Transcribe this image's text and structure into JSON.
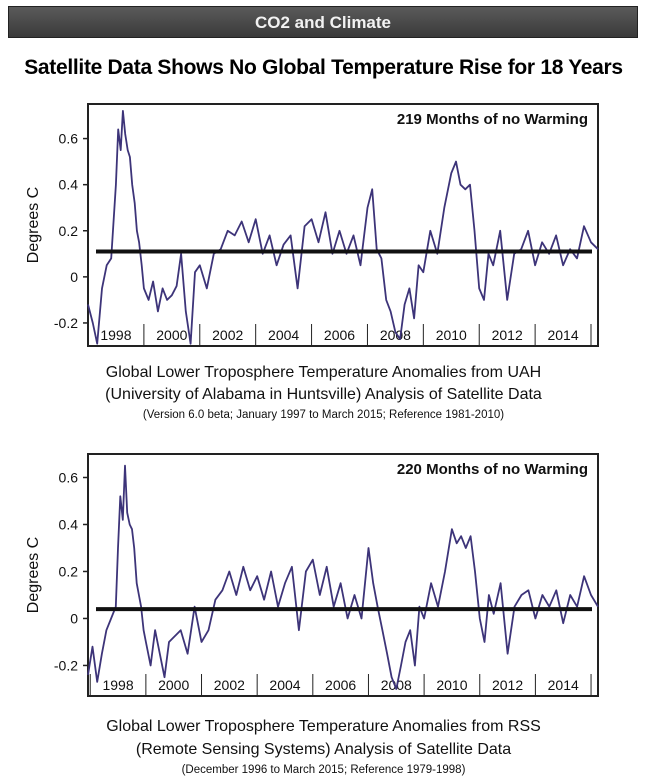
{
  "banner": {
    "title": "CO2 and Climate"
  },
  "headline": "Satellite Data Shows No Global Temperature Rise for 18 Years",
  "colors": {
    "series": "#3d3479",
    "trend": "#111111",
    "banner": "#4a4a4a"
  },
  "chart_data": [
    {
      "type": "line",
      "annotation": "219 Months of no Warming",
      "ylabel": "Degrees C",
      "xlim": [
        1997.0,
        2015.25
      ],
      "ylim": [
        -0.3,
        0.75
      ],
      "yticks": [
        "0.6",
        "0.4",
        "0.2",
        "0",
        "-0.2"
      ],
      "ytick_values": [
        0.6,
        0.4,
        0.2,
        0.0,
        -0.2
      ],
      "xticks": [
        "1998",
        "2000",
        "2002",
        "2004",
        "2006",
        "2008",
        "2010",
        "2012",
        "2014"
      ],
      "trend": {
        "x": [
          1997.0,
          2015.25
        ],
        "y": [
          0.11,
          0.11
        ]
      },
      "caption": [
        "Global Lower Troposphere Temperature Anomalies from UAH",
        "(University of Alabama in Huntsville) Analysis of Satellite Data"
      ],
      "subcaption": "(Version 6.0 beta; January 1997 to March 2015; Reference 1981-2010)",
      "series": [
        {
          "x": [
            1997.0,
            1997.17,
            1997.33,
            1997.5,
            1997.67,
            1997.83,
            1998.0,
            1998.08,
            1998.17,
            1998.25,
            1998.33,
            1998.42,
            1998.5,
            1998.58,
            1998.67,
            1998.75,
            1998.83,
            1998.92,
            1999.0,
            1999.17,
            1999.33,
            1999.5,
            1999.67,
            1999.83,
            2000.0,
            2000.17,
            2000.33,
            2000.5,
            2000.67,
            2000.83,
            2001.0,
            2001.25,
            2001.5,
            2001.75,
            2002.0,
            2002.25,
            2002.5,
            2002.75,
            2003.0,
            2003.25,
            2003.5,
            2003.75,
            2004.0,
            2004.25,
            2004.5,
            2004.75,
            2005.0,
            2005.25,
            2005.5,
            2005.75,
            2006.0,
            2006.25,
            2006.5,
            2006.75,
            2007.0,
            2007.17,
            2007.33,
            2007.5,
            2007.67,
            2007.83,
            2008.0,
            2008.17,
            2008.33,
            2008.5,
            2008.67,
            2008.83,
            2009.0,
            2009.25,
            2009.5,
            2009.75,
            2010.0,
            2010.17,
            2010.33,
            2010.5,
            2010.67,
            2010.83,
            2011.0,
            2011.17,
            2011.33,
            2011.5,
            2011.75,
            2012.0,
            2012.25,
            2012.5,
            2012.75,
            2013.0,
            2013.25,
            2013.5,
            2013.75,
            2014.0,
            2014.25,
            2014.5,
            2014.75,
            2015.0,
            2015.25
          ],
          "y": [
            -0.12,
            -0.2,
            -0.29,
            -0.05,
            0.05,
            0.08,
            0.4,
            0.64,
            0.55,
            0.72,
            0.62,
            0.55,
            0.52,
            0.4,
            0.32,
            0.2,
            0.15,
            0.05,
            -0.05,
            -0.1,
            -0.02,
            -0.15,
            -0.05,
            -0.1,
            -0.08,
            -0.04,
            0.1,
            -0.15,
            -0.29,
            0.02,
            0.05,
            -0.05,
            0.1,
            0.12,
            0.2,
            0.18,
            0.24,
            0.15,
            0.25,
            0.1,
            0.18,
            0.05,
            0.14,
            0.18,
            -0.05,
            0.22,
            0.25,
            0.15,
            0.28,
            0.1,
            0.2,
            0.1,
            0.18,
            0.05,
            0.3,
            0.38,
            0.12,
            0.08,
            -0.1,
            -0.15,
            -0.24,
            -0.27,
            -0.12,
            -0.05,
            -0.18,
            0.05,
            0.02,
            0.2,
            0.1,
            0.3,
            0.45,
            0.5,
            0.4,
            0.38,
            0.4,
            0.2,
            -0.05,
            -0.1,
            0.1,
            0.05,
            0.2,
            -0.1,
            0.1,
            0.12,
            0.2,
            0.05,
            0.15,
            0.1,
            0.18,
            0.05,
            0.12,
            0.08,
            0.22,
            0.15,
            0.12
          ]
        }
      ]
    },
    {
      "type": "line",
      "annotation": "220 Months of no Warming",
      "ylabel": "Degrees C",
      "xlim": [
        1996.92,
        2015.25
      ],
      "ylim": [
        -0.33,
        0.7
      ],
      "yticks": [
        "0.6",
        "0.4",
        "0.2",
        "0",
        "-0.2"
      ],
      "ytick_values": [
        0.6,
        0.4,
        0.2,
        0.0,
        -0.2
      ],
      "xticks": [
        "1998",
        "2000",
        "2002",
        "2004",
        "2006",
        "2008",
        "2010",
        "2012",
        "2014"
      ],
      "trend": {
        "x": [
          1996.92,
          2015.25
        ],
        "y": [
          0.04,
          0.04
        ]
      },
      "caption": [
        "Global Lower Troposphere Temperature Anomalies from RSS",
        "(Remote Sensing Systems) Analysis of Satellite Data"
      ],
      "subcaption": "(December 1996 to March 2015; Reference 1979-1998)",
      "series": [
        {
          "x": [
            1996.92,
            1997.08,
            1997.25,
            1997.42,
            1997.58,
            1997.75,
            1997.92,
            1998.0,
            1998.08,
            1998.17,
            1998.25,
            1998.33,
            1998.42,
            1998.5,
            1998.58,
            1998.67,
            1998.75,
            1998.83,
            1998.92,
            1999.0,
            1999.17,
            1999.33,
            1999.5,
            1999.67,
            1999.83,
            2000.0,
            2000.25,
            2000.5,
            2000.75,
            2001.0,
            2001.25,
            2001.5,
            2001.75,
            2002.0,
            2002.25,
            2002.5,
            2002.75,
            2003.0,
            2003.25,
            2003.5,
            2003.75,
            2004.0,
            2004.25,
            2004.5,
            2004.75,
            2005.0,
            2005.25,
            2005.5,
            2005.75,
            2006.0,
            2006.25,
            2006.5,
            2006.75,
            2007.0,
            2007.17,
            2007.33,
            2007.5,
            2007.67,
            2007.83,
            2008.0,
            2008.17,
            2008.33,
            2008.5,
            2008.67,
            2008.83,
            2009.0,
            2009.25,
            2009.5,
            2009.75,
            2010.0,
            2010.17,
            2010.33,
            2010.5,
            2010.67,
            2010.83,
            2011.0,
            2011.17,
            2011.33,
            2011.5,
            2011.75,
            2012.0,
            2012.25,
            2012.5,
            2012.75,
            2013.0,
            2013.25,
            2013.5,
            2013.75,
            2014.0,
            2014.25,
            2014.5,
            2014.75,
            2015.0,
            2015.25
          ],
          "y": [
            -0.24,
            -0.12,
            -0.27,
            -0.15,
            -0.05,
            0.0,
            0.05,
            0.3,
            0.52,
            0.42,
            0.65,
            0.45,
            0.4,
            0.38,
            0.3,
            0.15,
            0.1,
            0.05,
            -0.05,
            -0.1,
            -0.2,
            -0.05,
            -0.15,
            -0.25,
            -0.1,
            -0.08,
            -0.05,
            -0.15,
            0.05,
            -0.1,
            -0.05,
            0.08,
            0.12,
            0.2,
            0.1,
            0.22,
            0.12,
            0.18,
            0.08,
            0.2,
            0.05,
            0.15,
            0.22,
            -0.05,
            0.2,
            0.25,
            0.1,
            0.22,
            0.05,
            0.15,
            0.0,
            0.1,
            0.0,
            0.3,
            0.15,
            0.05,
            -0.05,
            -0.15,
            -0.25,
            -0.3,
            -0.2,
            -0.1,
            -0.05,
            -0.2,
            0.05,
            0.0,
            0.15,
            0.05,
            0.2,
            0.38,
            0.32,
            0.35,
            0.3,
            0.35,
            0.2,
            0.0,
            -0.1,
            0.1,
            0.02,
            0.15,
            -0.15,
            0.05,
            0.1,
            0.12,
            0.0,
            0.1,
            0.05,
            0.12,
            -0.02,
            0.1,
            0.05,
            0.18,
            0.1,
            0.05
          ]
        }
      ]
    }
  ]
}
